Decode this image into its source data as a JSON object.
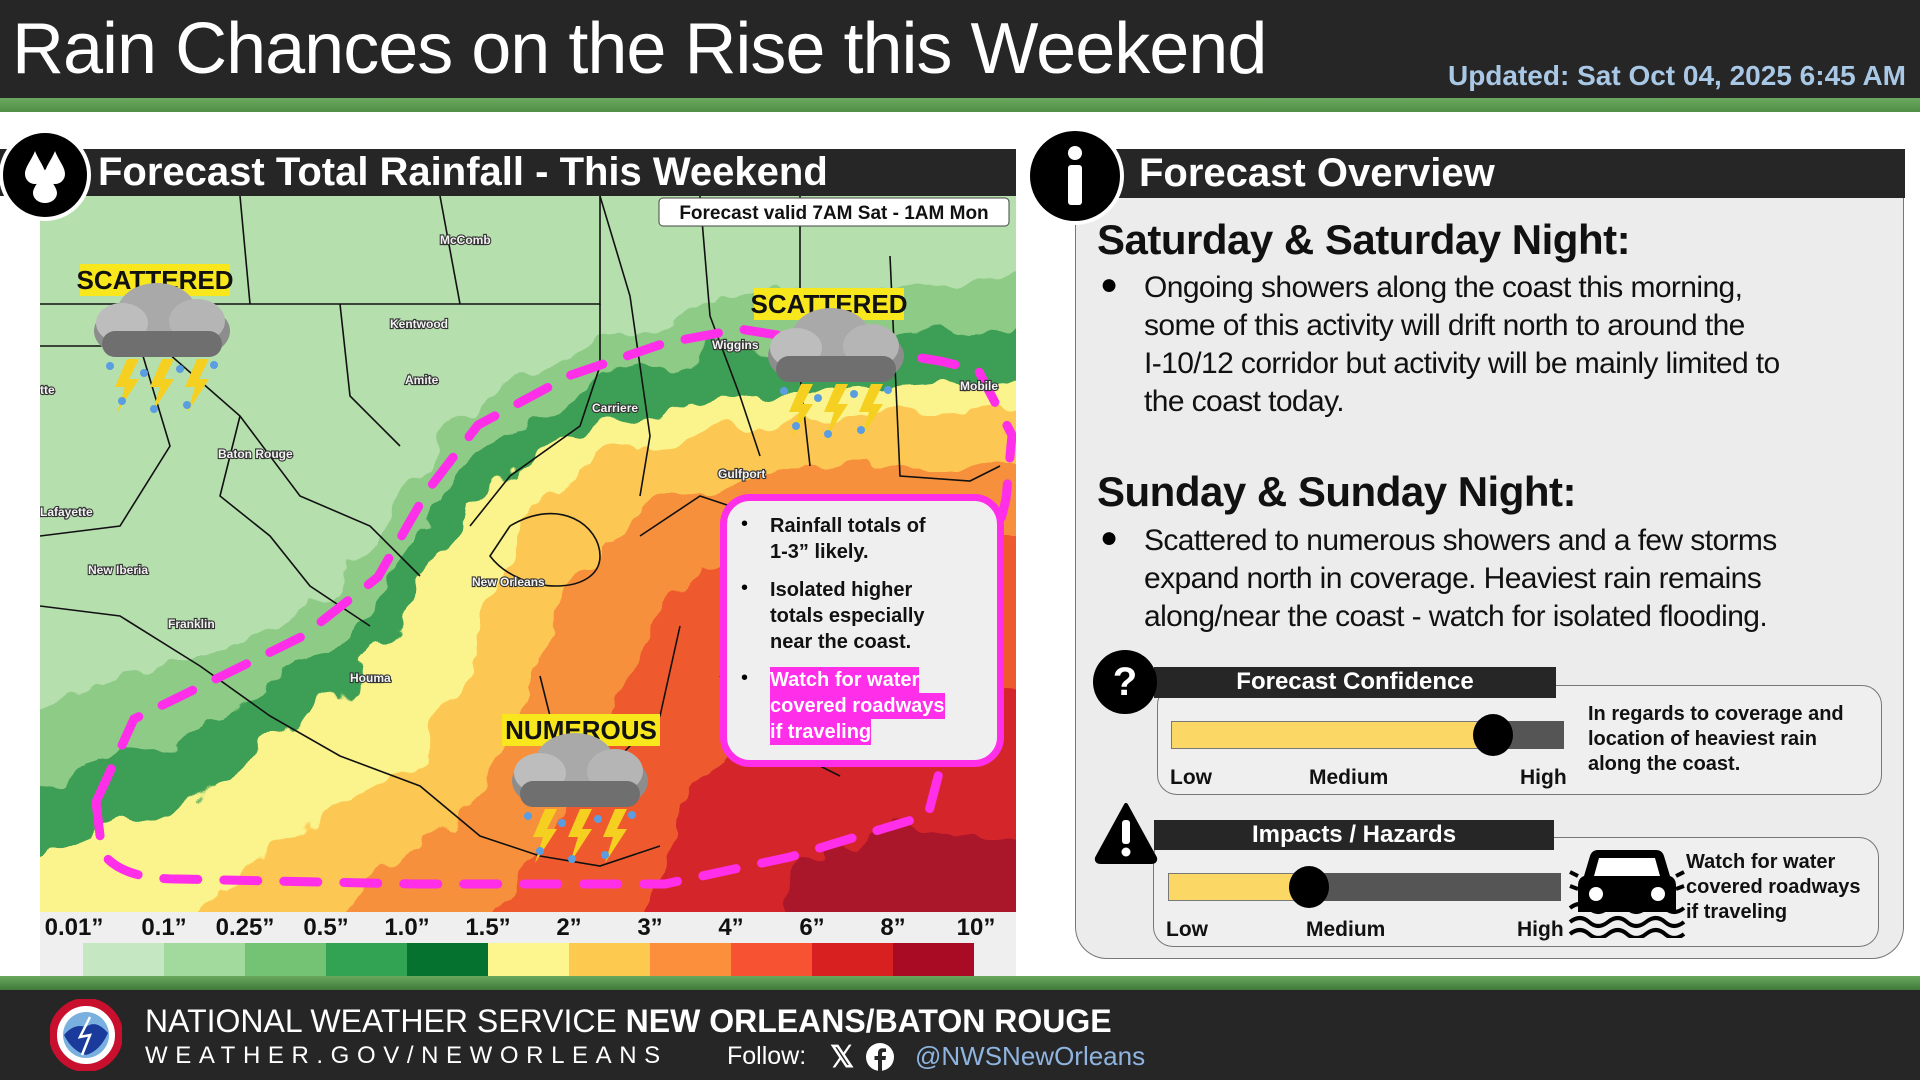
{
  "header": {
    "title": "Rain Chances on the Rise this Weekend",
    "updated": "Updated: Sat Oct 04, 2025 6:45 AM"
  },
  "left": {
    "title": "Forecast Total Rainfall - This Weekend",
    "icon": "raindrops-icon",
    "valid": "Forecast valid 7AM Sat - 1AM Mon",
    "coverage": {
      "nw": "SCATTERED",
      "ne": "SCATTERED",
      "s": "NUMEROUS"
    },
    "cities": {
      "mccomb": "McComb",
      "kentwood": "Kentwood",
      "amite": "Amite",
      "baton_rouge": "Baton Rouge",
      "lafayette": "Lafayette",
      "new_iberia": "New Iberia",
      "franklin": "Franklin",
      "houma": "Houma",
      "new_orleans": "New Orleans",
      "carriere": "Carriere",
      "wiggins": "Wiggins",
      "gulfport": "Gulfport",
      "mobile": "Mobile",
      "partial": "tte"
    },
    "callout": [
      "Rainfall totals of 1-3” likely.",
      "Isolated higher totals especially near the coast.",
      "Watch for water covered roadways if traveling"
    ],
    "callout_lines": [
      [
        "Rainfall totals of",
        "1-3” likely."
      ],
      [
        "Isolated higher",
        "totals especially",
        "near the coast."
      ],
      [
        "Watch for water",
        "covered roadways",
        "if traveling"
      ]
    ],
    "highlight_color": "#ff2ee8",
    "legend": {
      "labels": [
        "0.01”",
        "0.1”",
        "0.25”",
        "0.5”",
        "1.0”",
        "1.5”",
        "2”",
        "3”",
        "4”",
        "6”",
        "8”",
        "10”"
      ],
      "colors": [
        "#c5e8c2",
        "#a2d99c",
        "#74c375",
        "#32a353",
        "#06722f",
        "#fdf58e",
        "#fdc94e",
        "#fb8f3c",
        "#f75231",
        "#d7201f",
        "#a90a24"
      ]
    }
  },
  "right": {
    "title": "Forecast Overview",
    "icon": "info-icon",
    "sat": {
      "heading": "Saturday & Saturday Night:",
      "lines": [
        "Ongoing showers along the coast this morning,",
        "some of this activity will drift north to around the",
        "I-10/12 corridor but activity will be mainly limited to",
        "the coast today."
      ]
    },
    "sun": {
      "heading": "Sunday & Sunday Night:",
      "lines": [
        "Scattered to numerous showers and a few storms",
        "expand north in coverage. Heaviest rain remains",
        "along/near the coast - watch for isolated flooding."
      ]
    },
    "confidence": {
      "title": "Forecast Confidence",
      "level": 0.82,
      "low": "Low",
      "medium": "Medium",
      "high": "High",
      "note": [
        "In regards to coverage and",
        "location of heaviest rain",
        "along the coast."
      ]
    },
    "impacts": {
      "title": "Impacts / Hazards",
      "level": 0.36,
      "low": "Low",
      "medium": "Medium",
      "high": "High",
      "note": [
        "Watch for water",
        "covered roadways",
        "if traveling"
      ]
    }
  },
  "footer": {
    "org": "NATIONAL WEATHER SERVICE ",
    "office": "NEW ORLEANS/BATON ROUGE",
    "site": "WEATHER.GOV/NEWORLEANS",
    "follow": "Follow:",
    "handle": "@NWSNewOrleans",
    "logo_text": "NATIONAL WEATHER SERVICE"
  }
}
